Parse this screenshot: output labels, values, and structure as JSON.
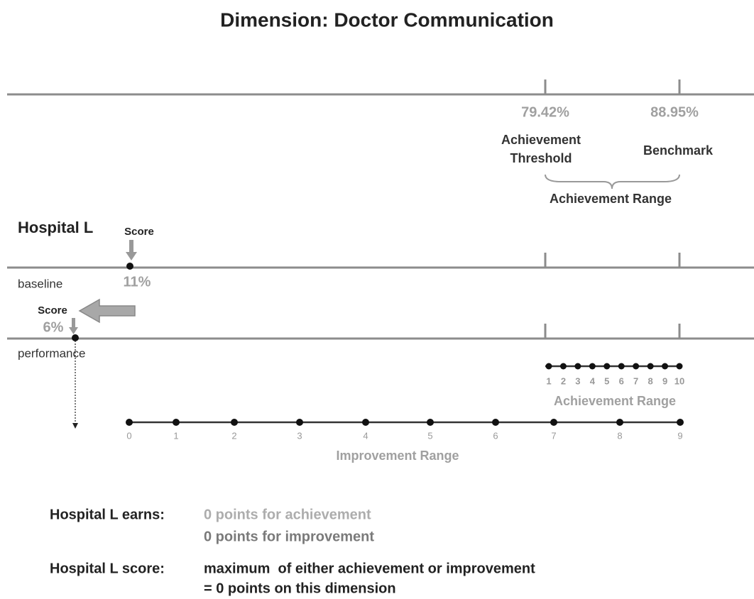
{
  "title": "Dimension: Doctor Communication",
  "threshold": {
    "value": "79.42%",
    "label": [
      "Achievement",
      "Threshold"
    ]
  },
  "benchmark": {
    "value": "88.95%",
    "label": "Benchmark"
  },
  "achievement_range_brace_label": "Achievement Range",
  "hospital": "Hospital L",
  "baseline": {
    "score_label": "Score",
    "value": "11%",
    "label": "baseline"
  },
  "performance": {
    "score_label": "Score",
    "value": "6%",
    "label": "performance"
  },
  "achievement_scale": {
    "ticks": [
      1,
      2,
      3,
      4,
      5,
      6,
      7,
      8,
      9,
      10
    ],
    "label": "Achievement Range"
  },
  "improvement_scale": {
    "ticks": [
      0,
      1,
      2,
      3,
      4,
      5,
      6,
      7,
      8,
      9
    ],
    "label": "Improvement Range"
  },
  "earnings": {
    "label": "Hospital L earns:",
    "lines": [
      "0 points for achievement",
      "0 points for improvement"
    ]
  },
  "score": {
    "label": "Hospital L score:",
    "lines": [
      "maximum  of either achievement or improvement",
      "= 0 points on this dimension"
    ]
  }
}
